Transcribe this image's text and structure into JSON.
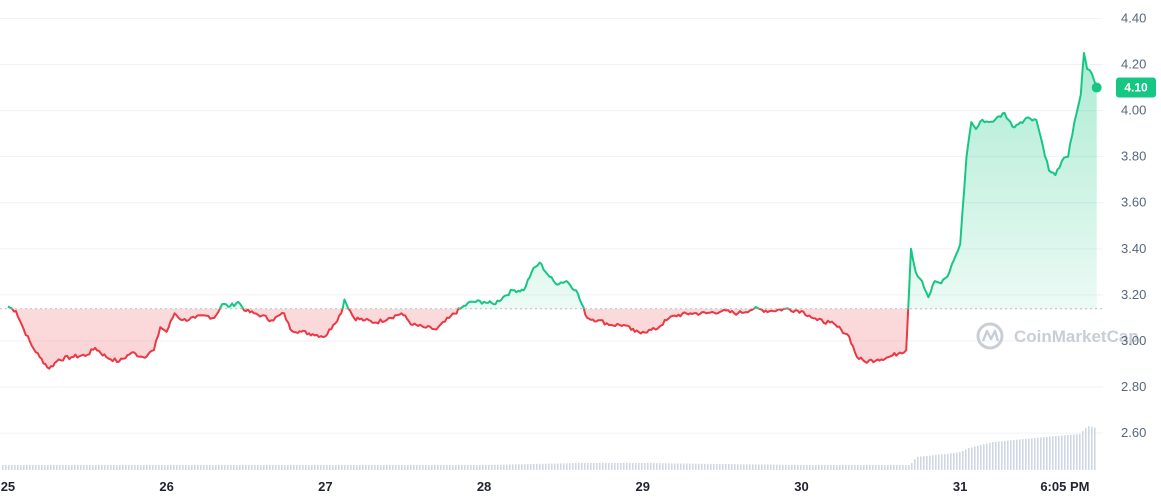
{
  "chart_data": {
    "type": "line",
    "y_ticks": [
      "4.40",
      "4.20",
      "4.00",
      "3.80",
      "3.60",
      "3.40",
      "3.20",
      "3.00",
      "2.80",
      "2.60"
    ],
    "y_tick_values": [
      4.4,
      4.2,
      4.0,
      3.8,
      3.6,
      3.4,
      3.2,
      3.0,
      2.8,
      2.6
    ],
    "x_ticks": [
      "25",
      "26",
      "27",
      "28",
      "29",
      "30",
      "31",
      "6:05 PM"
    ],
    "x_tick_days": [
      0,
      1,
      2,
      3,
      4,
      5,
      6,
      6.66
    ],
    "ylim": [
      2.44,
      4.48
    ],
    "xlim": [
      -0.05,
      6.9
    ],
    "baseline": 3.14,
    "current_price": "4.10",
    "current_value": 4.1,
    "watermark": "CoinMarketCap",
    "grid": true,
    "colors": {
      "up": "#16c784",
      "down": "#ea3943",
      "axis_text": "#58667e",
      "volume": "#cfd6e4",
      "grid": "#eff2f5",
      "baseline": "#b6bdc8"
    },
    "series": [
      {
        "points": [
          [
            0.0,
            3.15
          ],
          [
            0.05,
            3.13
          ],
          [
            0.1,
            3.05
          ],
          [
            0.15,
            2.98
          ],
          [
            0.2,
            2.93
          ],
          [
            0.26,
            2.88
          ],
          [
            0.32,
            2.92
          ],
          [
            0.4,
            2.93
          ],
          [
            0.5,
            2.94
          ],
          [
            0.55,
            2.97
          ],
          [
            0.62,
            2.93
          ],
          [
            0.7,
            2.91
          ],
          [
            0.78,
            2.95
          ],
          [
            0.85,
            2.93
          ],
          [
            0.92,
            2.96
          ],
          [
            0.96,
            3.06
          ],
          [
            1.0,
            3.04
          ],
          [
            1.05,
            3.12
          ],
          [
            1.1,
            3.09
          ],
          [
            1.18,
            3.1
          ],
          [
            1.25,
            3.11
          ],
          [
            1.3,
            3.1
          ],
          [
            1.35,
            3.16
          ],
          [
            1.4,
            3.15
          ],
          [
            1.45,
            3.17
          ],
          [
            1.5,
            3.13
          ],
          [
            1.55,
            3.12
          ],
          [
            1.6,
            3.11
          ],
          [
            1.66,
            3.09
          ],
          [
            1.74,
            3.12
          ],
          [
            1.78,
            3.05
          ],
          [
            1.85,
            3.04
          ],
          [
            1.92,
            3.03
          ],
          [
            2.0,
            3.02
          ],
          [
            2.05,
            3.07
          ],
          [
            2.1,
            3.12
          ],
          [
            2.12,
            3.18
          ],
          [
            2.18,
            3.1
          ],
          [
            2.25,
            3.09
          ],
          [
            2.32,
            3.08
          ],
          [
            2.4,
            3.1
          ],
          [
            2.48,
            3.12
          ],
          [
            2.55,
            3.07
          ],
          [
            2.62,
            3.06
          ],
          [
            2.7,
            3.05
          ],
          [
            2.78,
            3.1
          ],
          [
            2.85,
            3.14
          ],
          [
            2.92,
            3.17
          ],
          [
            3.0,
            3.17
          ],
          [
            3.06,
            3.16
          ],
          [
            3.12,
            3.19
          ],
          [
            3.18,
            3.22
          ],
          [
            3.25,
            3.22
          ],
          [
            3.3,
            3.3
          ],
          [
            3.35,
            3.34
          ],
          [
            3.4,
            3.29
          ],
          [
            3.45,
            3.25
          ],
          [
            3.52,
            3.26
          ],
          [
            3.58,
            3.22
          ],
          [
            3.65,
            3.1
          ],
          [
            3.72,
            3.09
          ],
          [
            3.8,
            3.07
          ],
          [
            3.88,
            3.07
          ],
          [
            3.95,
            3.04
          ],
          [
            4.0,
            3.04
          ],
          [
            4.08,
            3.05
          ],
          [
            4.15,
            3.09
          ],
          [
            4.2,
            3.11
          ],
          [
            4.3,
            3.12
          ],
          [
            4.4,
            3.12
          ],
          [
            4.5,
            3.13
          ],
          [
            4.6,
            3.12
          ],
          [
            4.7,
            3.14
          ],
          [
            4.8,
            3.13
          ],
          [
            4.9,
            3.14
          ],
          [
            5.0,
            3.13
          ],
          [
            5.05,
            3.11
          ],
          [
            5.1,
            3.09
          ],
          [
            5.18,
            3.08
          ],
          [
            5.25,
            3.05
          ],
          [
            5.3,
            3.02
          ],
          [
            5.35,
            2.93
          ],
          [
            5.4,
            2.91
          ],
          [
            5.48,
            2.92
          ],
          [
            5.55,
            2.93
          ],
          [
            5.62,
            2.95
          ],
          [
            5.66,
            2.96
          ],
          [
            5.69,
            3.4
          ],
          [
            5.72,
            3.3
          ],
          [
            5.76,
            3.26
          ],
          [
            5.8,
            3.19
          ],
          [
            5.84,
            3.26
          ],
          [
            5.88,
            3.25
          ],
          [
            5.92,
            3.28
          ],
          [
            5.96,
            3.35
          ],
          [
            6.0,
            3.42
          ],
          [
            6.04,
            3.8
          ],
          [
            6.07,
            3.95
          ],
          [
            6.1,
            3.92
          ],
          [
            6.14,
            3.96
          ],
          [
            6.18,
            3.95
          ],
          [
            6.22,
            3.96
          ],
          [
            6.28,
            3.99
          ],
          [
            6.33,
            3.93
          ],
          [
            6.38,
            3.95
          ],
          [
            6.43,
            3.97
          ],
          [
            6.48,
            3.96
          ],
          [
            6.52,
            3.85
          ],
          [
            6.56,
            3.74
          ],
          [
            6.6,
            3.72
          ],
          [
            6.64,
            3.78
          ],
          [
            6.68,
            3.8
          ],
          [
            6.72,
            3.95
          ],
          [
            6.76,
            4.07
          ],
          [
            6.78,
            4.25
          ],
          [
            6.8,
            4.18
          ],
          [
            6.83,
            4.16
          ],
          [
            6.86,
            4.1
          ]
        ]
      }
    ],
    "volume": [
      [
        0.0,
        0.05
      ],
      [
        0.5,
        0.05
      ],
      [
        1.0,
        0.05
      ],
      [
        1.5,
        0.05
      ],
      [
        2.0,
        0.05
      ],
      [
        2.5,
        0.05
      ],
      [
        3.0,
        0.05
      ],
      [
        3.3,
        0.06
      ],
      [
        3.6,
        0.07
      ],
      [
        4.0,
        0.07
      ],
      [
        4.5,
        0.06
      ],
      [
        5.0,
        0.05
      ],
      [
        5.5,
        0.05
      ],
      [
        5.68,
        0.05
      ],
      [
        5.72,
        0.13
      ],
      [
        5.9,
        0.16
      ],
      [
        6.0,
        0.18
      ],
      [
        6.05,
        0.22
      ],
      [
        6.2,
        0.28
      ],
      [
        6.4,
        0.31
      ],
      [
        6.6,
        0.34
      ],
      [
        6.75,
        0.36
      ],
      [
        6.8,
        0.44
      ],
      [
        6.86,
        0.42
      ]
    ]
  }
}
